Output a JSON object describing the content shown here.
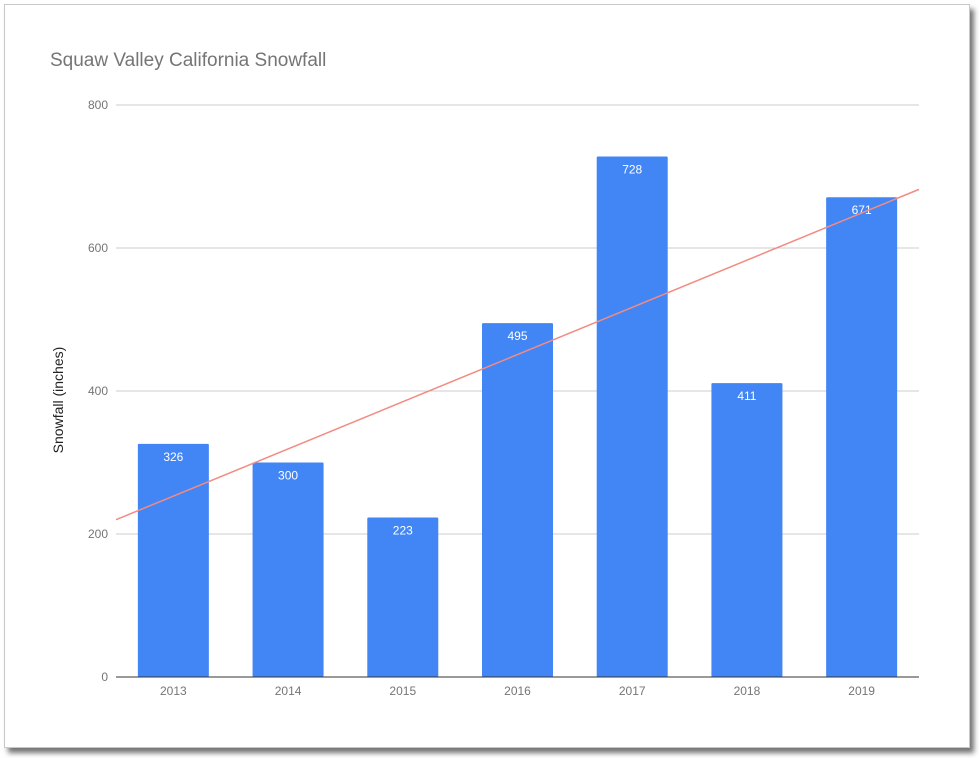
{
  "chart_data": {
    "type": "bar",
    "title": "Squaw Valley California Snowfall",
    "xlabel": "",
    "ylabel": "Snowfall (inches)",
    "categories": [
      "2013",
      "2014",
      "2015",
      "2016",
      "2017",
      "2018",
      "2019"
    ],
    "values": [
      326,
      300,
      223,
      495,
      728,
      411,
      671
    ],
    "data_labels": [
      "326",
      "300",
      "223",
      "495",
      "728",
      "411",
      "671"
    ],
    "ylim": [
      0,
      800
    ],
    "yticks": [
      0,
      200,
      400,
      600,
      800
    ],
    "ytick_labels": [
      "0",
      "200",
      "400",
      "600",
      "800"
    ],
    "grid": true,
    "legend": "none",
    "trendline": {
      "type": "linear",
      "start_value": 220,
      "end_value": 682
    },
    "colors": {
      "bar": "#4285f4",
      "trendline": "#f28b82",
      "grid": "#cccccc",
      "axis": "#333333",
      "text": "#757575",
      "label": "#ffffff"
    }
  }
}
